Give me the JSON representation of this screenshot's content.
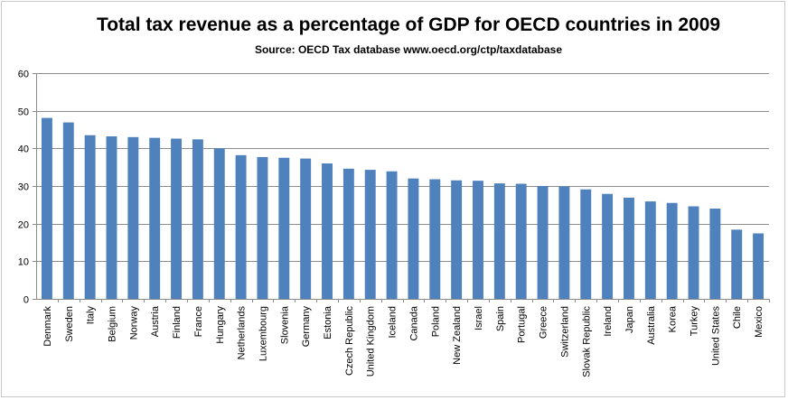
{
  "chart_data": {
    "type": "bar",
    "title": "Total tax revenue as a percentage of GDP for OECD countries in 2009",
    "subtitle": "Source: OECD Tax database www.oecd.org/ctp/taxdatabase",
    "xlabel": "",
    "ylabel": "",
    "ylim": [
      0,
      60
    ],
    "yticks": [
      0,
      10,
      20,
      30,
      40,
      50,
      60
    ],
    "grid": true,
    "bar_color": "#4f81bd",
    "categories": [
      "Denmark",
      "Sweden",
      "Italy",
      "Belgium",
      "Norway",
      "Austria",
      "Finland",
      "France",
      "Hungary",
      "Netherlands",
      "Luxembourg",
      "Slovenia",
      "Germany",
      "Estonia",
      "Czech Republic",
      "United Kingdom",
      "Iceland",
      "Canada",
      "Poland",
      "New Zealand",
      "Israel",
      "Spain",
      "Portugal",
      "Greece",
      "Switzerland",
      "Slovak Republic",
      "Ireland",
      "Japan",
      "Australia",
      "Korea",
      "Turkey",
      "United States",
      "Chile",
      "Mexico"
    ],
    "values": [
      48.1,
      46.9,
      43.5,
      43.2,
      43.0,
      42.8,
      42.6,
      42.4,
      40.0,
      38.2,
      37.7,
      37.5,
      37.3,
      36.0,
      34.6,
      34.3,
      33.9,
      32.0,
      31.8,
      31.5,
      31.4,
      30.7,
      30.6,
      30.0,
      29.9,
      29.1,
      27.9,
      26.9,
      25.9,
      25.5,
      24.6,
      24.0,
      18.4,
      17.4
    ]
  }
}
